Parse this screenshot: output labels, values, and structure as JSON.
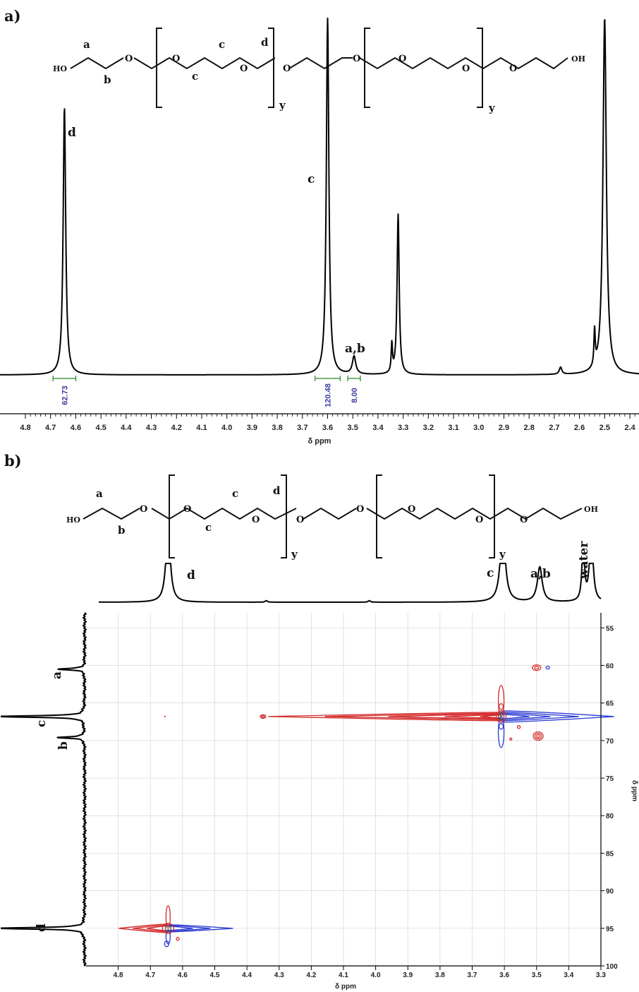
{
  "panel_a": {
    "label": "a)",
    "structure_labels": {
      "ho": "HO",
      "oh": "OH",
      "o": "O",
      "a": "a",
      "b": "b",
      "c": "c",
      "d": "d",
      "y": "y"
    },
    "peak_labels": [
      "d",
      "c",
      "a,b"
    ],
    "xlabel": "δ ppm",
    "integrals": [
      "62.73",
      "120.48",
      "8.00"
    ]
  },
  "panel_b": {
    "label": "b)",
    "top_peak_labels": [
      "d",
      "c",
      "a,b",
      "water"
    ],
    "side_peak_labels": [
      "a",
      "c",
      "b",
      "d"
    ],
    "xlabel": "δ ppm",
    "ylabel": "δ ppm"
  },
  "colors": {
    "positive": "#d42a2a",
    "negative": "#2a3ad4",
    "spectrum": "#000000",
    "integral": "#4a9a4a"
  },
  "chart_data": [
    {
      "type": "line",
      "title": "",
      "xlabel": "δ ppm",
      "x_reversed": true,
      "xlim": [
        4.8,
        2.4
      ],
      "x_ticks": [
        4.8,
        4.7,
        4.6,
        4.5,
        4.4,
        4.3,
        4.2,
        4.1,
        4.0,
        3.9,
        3.8,
        3.7,
        3.6,
        3.5,
        3.4,
        3.3,
        3.2,
        3.1,
        3.0,
        2.9,
        2.8,
        2.7,
        2.6,
        2.5,
        2.4
      ],
      "x_tick_labels": [
        "4.8",
        "4.7",
        "4.6",
        "4.5",
        "4.4",
        "4.3",
        "4.2",
        "4.1",
        "4.0",
        "3.9",
        "3.8",
        "3.7",
        "3.6",
        "3.5",
        "3.4",
        "3.3",
        "3.2",
        "3.1",
        "3.0",
        "2.9",
        "2.8",
        "2.7",
        "2.6",
        "2.5",
        "2.4"
      ],
      "peaks": [
        {
          "ppm": 4.645,
          "rel_height": 0.75,
          "width": 0.006,
          "label": "d"
        },
        {
          "ppm": 3.6,
          "rel_height": 1.0,
          "width": 0.006,
          "label": "c"
        },
        {
          "ppm": 3.495,
          "rel_height": 0.05,
          "width": 0.008,
          "label": "a,b"
        },
        {
          "ppm": 3.345,
          "rel_height": 0.08,
          "width": 0.003
        },
        {
          "ppm": 3.32,
          "rel_height": 0.45,
          "width": 0.005
        },
        {
          "ppm": 2.675,
          "rel_height": 0.02,
          "width": 0.006
        },
        {
          "ppm": 2.54,
          "rel_height": 0.1,
          "width": 0.003
        },
        {
          "ppm": 2.5,
          "rel_height": 1.0,
          "width": 0.008
        }
      ],
      "integrals": [
        {
          "from": 4.69,
          "to": 4.6,
          "value": "62.73"
        },
        {
          "from": 3.65,
          "to": 3.55,
          "value": "120.48"
        },
        {
          "from": 3.52,
          "to": 3.47,
          "value": "8.00"
        }
      ]
    },
    {
      "type": "heatmap",
      "title": "",
      "xlabel": "δ ppm",
      "ylabel": "δ ppm",
      "xlim": [
        4.9,
        3.3
      ],
      "ylim": [
        53,
        100
      ],
      "x_ticks": [
        4.8,
        4.7,
        4.6,
        4.5,
        4.4,
        4.3,
        4.2,
        4.1,
        4.0,
        3.9,
        3.8,
        3.7,
        3.6,
        3.5,
        3.4,
        3.3
      ],
      "x_tick_labels": [
        "4.8",
        "4.7",
        "4.6",
        "4.5",
        "4.4",
        "4.3",
        "4.2",
        "4.1",
        "4.0",
        "3.9",
        "3.8",
        "3.7",
        "3.6",
        "3.5",
        "3.4",
        "3.3"
      ],
      "y_ticks": [
        55,
        60,
        65,
        70,
        75,
        80,
        85,
        90,
        95,
        100
      ],
      "y_tick_labels": [
        "55",
        "60",
        "65",
        "70",
        "75",
        "80",
        "85",
        "90",
        "95",
        "100"
      ],
      "cross_peaks": [
        {
          "x": 3.61,
          "y": 66.8,
          "label": "c"
        },
        {
          "x": 4.645,
          "y": 95.0,
          "label": "d"
        },
        {
          "x": 3.495,
          "y": 60.3,
          "label": "a"
        },
        {
          "x": 3.495,
          "y": 69.5,
          "label": "b"
        }
      ],
      "top_projection_peaks": [
        {
          "ppm": 4.645,
          "label": "d"
        },
        {
          "ppm": 3.605,
          "label": "c"
        },
        {
          "ppm": 3.49,
          "label": "a,b"
        },
        {
          "ppm": 3.355,
          "label": "water"
        },
        {
          "ppm": 3.33
        }
      ],
      "side_projection_peaks": [
        {
          "ppm": 60.5,
          "label": "a"
        },
        {
          "ppm": 66.8,
          "label": "c"
        },
        {
          "ppm": 69.6,
          "label": "b"
        },
        {
          "ppm": 95.0,
          "label": "d"
        }
      ]
    }
  ]
}
